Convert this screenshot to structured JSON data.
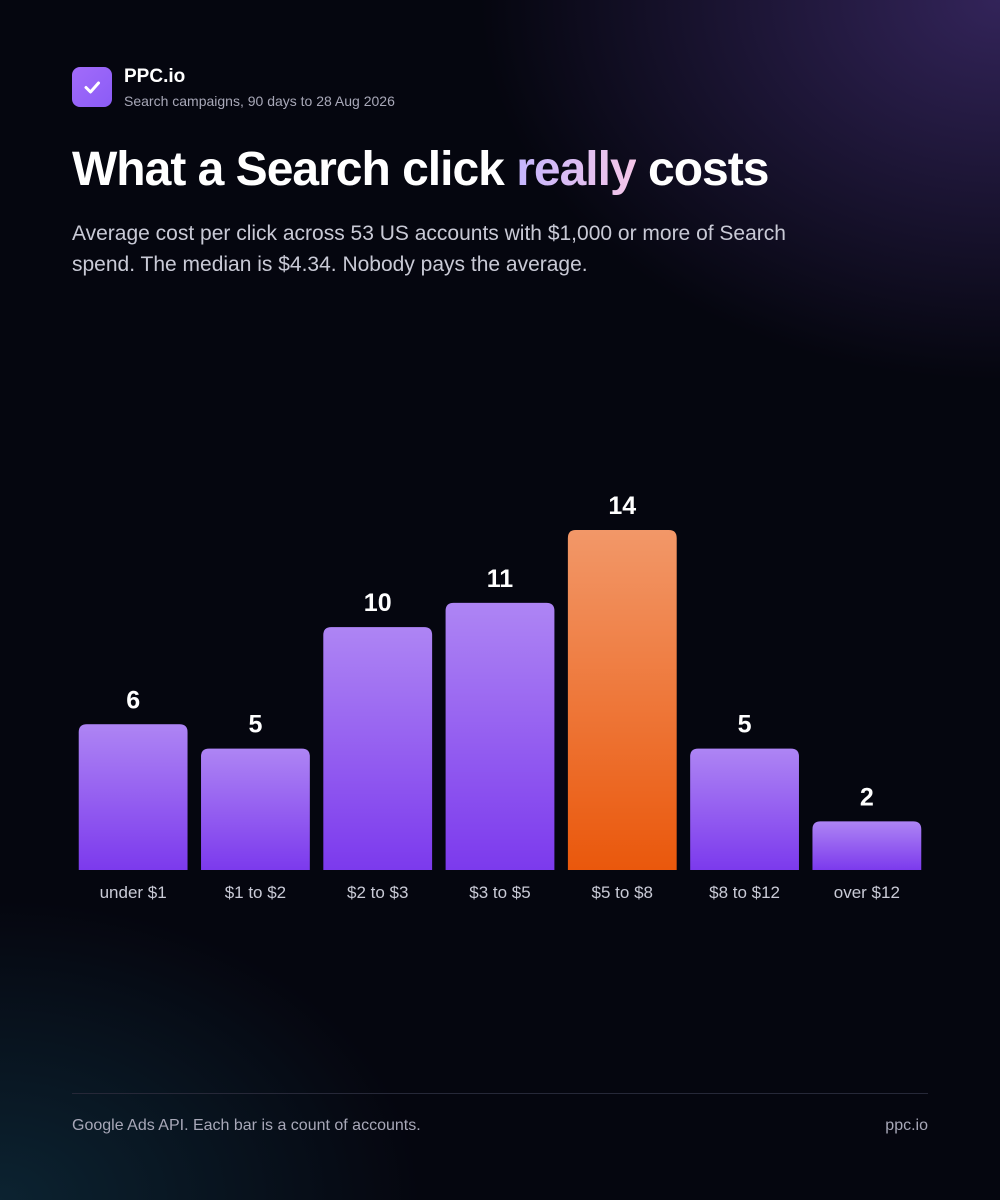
{
  "brand": {
    "name": "PPC.io",
    "subtitle": "Search campaigns, 90 days to 28 Aug 2026"
  },
  "chart_data": {
    "type": "bar",
    "title": {
      "before": "What a Search click",
      "highlight": "really",
      "after": "costs"
    },
    "subtitle": "Average cost per click across 53 US accounts with $1,000 or more of Search spend. The median is $4.34. Nobody pays the average.",
    "categories": [
      "under $1",
      "$1 to $2",
      "$2 to $3",
      "$3 to $5",
      "$5 to $8",
      "$8 to $12",
      "over $12"
    ],
    "values": [
      6,
      5,
      10,
      11,
      14,
      5,
      2
    ],
    "colors": [
      "#7c3aed",
      "#7c3aed",
      "#7c3aed",
      "#7c3aed",
      "#ea580c",
      "#7c3aed",
      "#7c3aed"
    ],
    "ylim": [
      0,
      14
    ]
  },
  "footer": {
    "note": "Google Ads API. Each bar is a count of accounts.",
    "site": "ppc.io"
  }
}
